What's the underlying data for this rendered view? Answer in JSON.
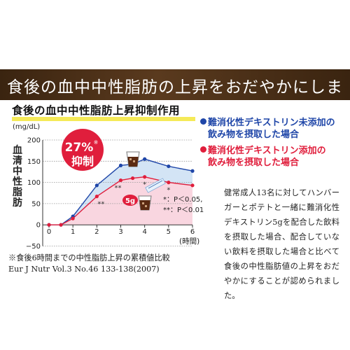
{
  "banner": {
    "text": "食後の血中中性脂肪の上昇をおだやかにします。"
  },
  "subtitle": "食後の血中中性脂肪上昇抑制作用",
  "legend": {
    "blue": {
      "line1": "難消化性デキストリン未添加の",
      "line2": "飲み物を摂取した場合",
      "color": "#1f46a8"
    },
    "red": {
      "line1": "難消化性デキストリン添加の",
      "line2": "飲み物を摂取した場合",
      "color": "#e01e3c"
    }
  },
  "description": "健常成人13名に対してハンバーガーとポテトと一緒に難消化性デキストリン5gを配合した飲料を摂取した場合、配合していない飲料を摂取した場合と比べて食後の中性脂肪値の上昇をおだやかにすることが認められました。",
  "footnotes": {
    "line1": "※食後6時間までの中性脂肪上昇の累積値比較",
    "line2": "Eur J Nutr Vol.3 No.46 133-138(2007)"
  },
  "chart_data": {
    "type": "line",
    "unit_label": "(mg/dL)",
    "ylabel": "血清中性脂肪",
    "xlabel": "(時間)",
    "x": [
      0,
      0.5,
      1,
      2,
      3,
      3.5,
      4,
      5,
      6
    ],
    "xticks": [
      0,
      1,
      2,
      3,
      4,
      5,
      6
    ],
    "ylim": [
      -50,
      200
    ],
    "yticks": [
      -50,
      0,
      50,
      100,
      150,
      200
    ],
    "grid": "horizontal dotted",
    "series": [
      {
        "name": "難消化性デキストリン未添加の飲み物を摂取した場合",
        "color": "#1f46a8",
        "values": [
          0,
          0,
          20,
          93,
          140,
          143,
          155,
          138,
          127
        ]
      },
      {
        "name": "難消化性デキストリン添加の飲み物を摂取した場合",
        "color": "#e01e3c",
        "values": [
          0,
          0,
          15,
          67,
          105,
          110,
          113,
          100,
          93
        ]
      }
    ],
    "annotations": {
      "callout_main": "27%",
      "callout_mark": "※",
      "callout_sub": "抑制",
      "dose_label": "5g",
      "sig_markers": [
        {
          "x": 2,
          "text": "**"
        },
        {
          "x": 3,
          "text": "**"
        },
        {
          "x": 4,
          "text": "*"
        },
        {
          "x": 5,
          "text": "*"
        }
      ],
      "sig_legend_1": "*：P＜0.05,",
      "sig_legend_2": "**：P＜0.01"
    }
  }
}
